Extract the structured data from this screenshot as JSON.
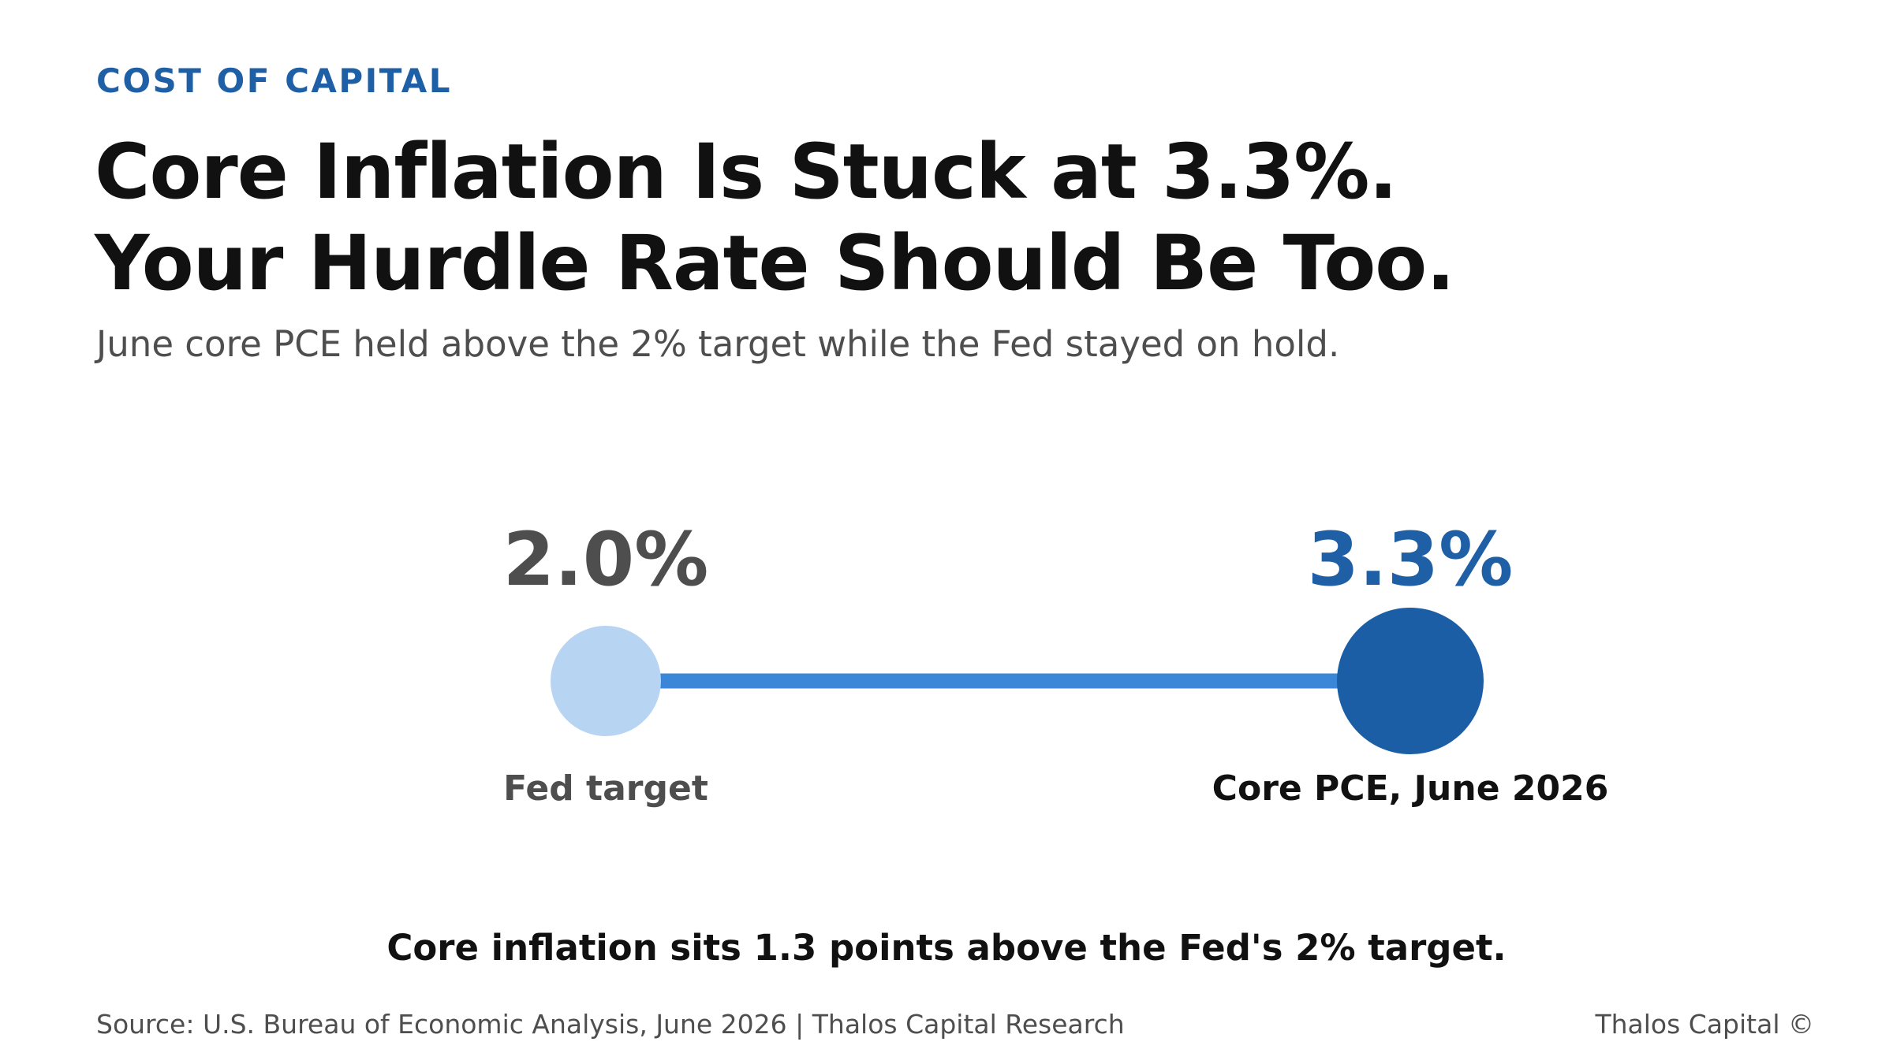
{
  "eyebrow": "COST OF CAPITAL",
  "headline": {
    "line1": "Core Inflation Is Stuck at 3.3%.",
    "line2": "Your Hurdle Rate Should Be Too."
  },
  "subtitle": "June core PCE held above the 2% target while the Fed stayed on hold.",
  "chart_data": {
    "type": "dumbbell",
    "title": "",
    "points": [
      {
        "label": "Fed target",
        "value": 2.0,
        "value_label": "2.0%",
        "color": "#b7d4f2",
        "label_color": "#4e4e4e"
      },
      {
        "label": "Core PCE, June 2026",
        "value": 3.3,
        "value_label": "3.3%",
        "color": "#1c5ea5",
        "label_color": "#111111"
      }
    ],
    "connector_color": "#3b86d6",
    "value_colors": [
      "#4e4e4e",
      "#1f5fa6"
    ],
    "gap": 1.3
  },
  "takeaway": "Core inflation sits 1.3 points above the Fed's 2% target.",
  "footer": {
    "source": "Source: U.S. Bureau of Economic Analysis, June 2026 | Thalos Capital Research",
    "brand": "Thalos Capital ©"
  }
}
